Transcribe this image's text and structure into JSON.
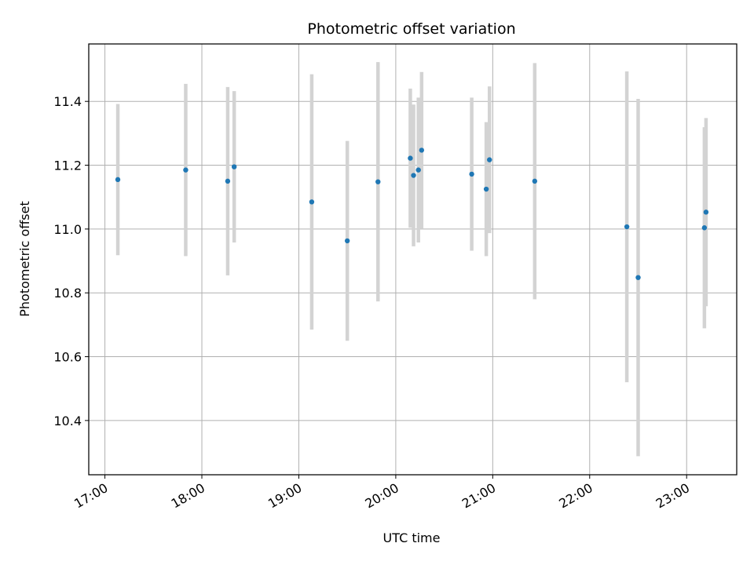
{
  "chart_data": {
    "type": "scatter",
    "title": "Photometric offset variation",
    "xlabel": "UTC time",
    "ylabel": "Photometric offset",
    "x_tick_labels": [
      "17:00",
      "18:00",
      "19:00",
      "20:00",
      "21:00",
      "22:00",
      "23:00"
    ],
    "y_tick_labels": [
      "10.4",
      "10.6",
      "10.8",
      "11.0",
      "11.2",
      "11.4"
    ],
    "xlim": [
      "16:50",
      "23:31"
    ],
    "ylim": [
      10.23,
      11.58
    ],
    "grid": true,
    "marker_color": "#1f77b4",
    "errorbar_color": "#d3d3d3",
    "points": [
      {
        "time": "17:08",
        "y": 11.155,
        "err": 0.237
      },
      {
        "time": "17:50",
        "y": 11.185,
        "err": 0.27
      },
      {
        "time": "18:16",
        "y": 11.15,
        "err": 0.295
      },
      {
        "time": "18:20",
        "y": 11.195,
        "err": 0.237
      },
      {
        "time": "19:08",
        "y": 11.085,
        "err": 0.4
      },
      {
        "time": "19:30",
        "y": 10.963,
        "err": 0.313
      },
      {
        "time": "19:49",
        "y": 11.148,
        "err": 0.375
      },
      {
        "time": "20:09",
        "y": 11.222,
        "err": 0.218
      },
      {
        "time": "20:11",
        "y": 11.168,
        "err": 0.222
      },
      {
        "time": "20:14",
        "y": 11.185,
        "err": 0.227
      },
      {
        "time": "20:16",
        "y": 11.247,
        "err": 0.245
      },
      {
        "time": "20:47",
        "y": 11.172,
        "err": 0.24
      },
      {
        "time": "20:56",
        "y": 11.125,
        "err": 0.21
      },
      {
        "time": "20:58",
        "y": 11.217,
        "err": 0.23
      },
      {
        "time": "21:26",
        "y": 11.15,
        "err": 0.37
      },
      {
        "time": "22:23",
        "y": 11.007,
        "err": 0.487
      },
      {
        "time": "22:30",
        "y": 10.848,
        "err": 0.56
      },
      {
        "time": "23:11",
        "y": 11.004,
        "err": 0.315
      },
      {
        "time": "23:12",
        "y": 11.053,
        "err": 0.295
      }
    ]
  }
}
